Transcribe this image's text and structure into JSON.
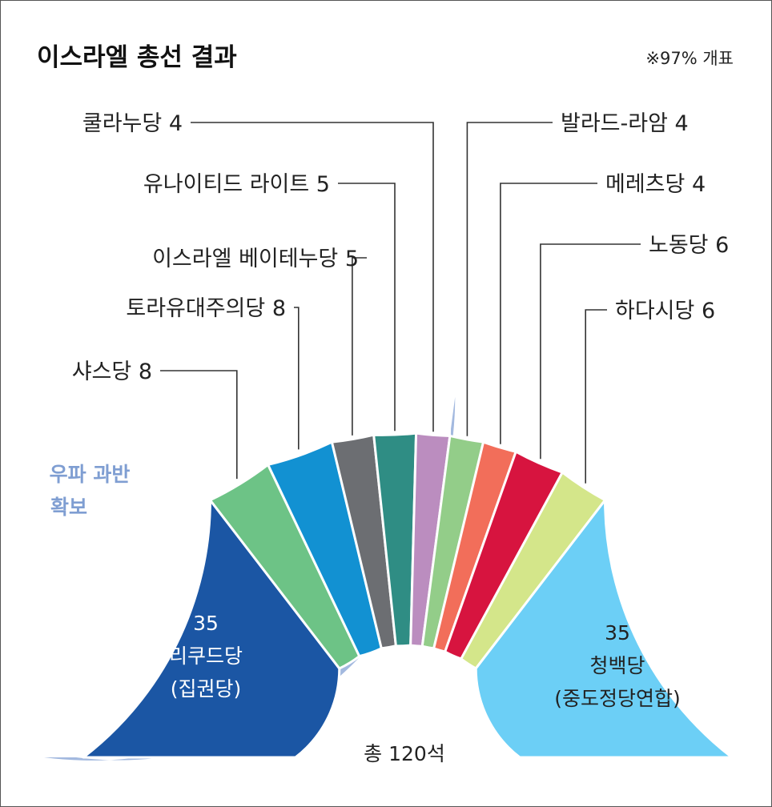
{
  "chart_data": {
    "type": "pie",
    "title": "이스라엘 총선 결과",
    "note": "※97% 개표",
    "total_label": "총 120석",
    "total_seats": 120,
    "bloc": {
      "label_line1": "우파 과반",
      "label_line2": "확보",
      "color": "#a3b9df"
    },
    "slices": [
      {
        "name": "리쿠드당",
        "name_line2": "(집권당)",
        "seats": 35,
        "value_label": "35",
        "color": "#1b56a4",
        "inner": true,
        "text_color": "#ffffff"
      },
      {
        "name": "샤스당",
        "seats": 8,
        "label": "샤스당 8",
        "color": "#6dc386"
      },
      {
        "name": "토라유대주의당",
        "seats": 8,
        "label": "토라유대주의당 8",
        "color": "#1291d2"
      },
      {
        "name": "이스라엘 베이테누당",
        "seats": 5,
        "label": "이스라엘 베이테누당 5",
        "color": "#6c6e72"
      },
      {
        "name": "유나이티드 라이트",
        "seats": 5,
        "label": "유나이티드 라이트 5",
        "color": "#2f8d84"
      },
      {
        "name": "쿨라누당",
        "seats": 4,
        "label": "쿨라누당 4",
        "color": "#bb8dbf"
      },
      {
        "name": "발라드-라암",
        "seats": 4,
        "label": "발라드-라암 4",
        "color": "#93cd89"
      },
      {
        "name": "메레츠당",
        "seats": 4,
        "label": "메레츠당 4",
        "color": "#f26e5a"
      },
      {
        "name": "노동당",
        "seats": 6,
        "label": "노동당 6",
        "color": "#d7143f"
      },
      {
        "name": "하다시당",
        "seats": 6,
        "label": "하다시당 6",
        "color": "#d4e68a"
      },
      {
        "name": "청백당",
        "name_line2": "(중도정당연합)",
        "seats": 35,
        "value_label": "35",
        "color": "#6ccff6",
        "inner": true,
        "text_color": "#222222"
      }
    ]
  }
}
